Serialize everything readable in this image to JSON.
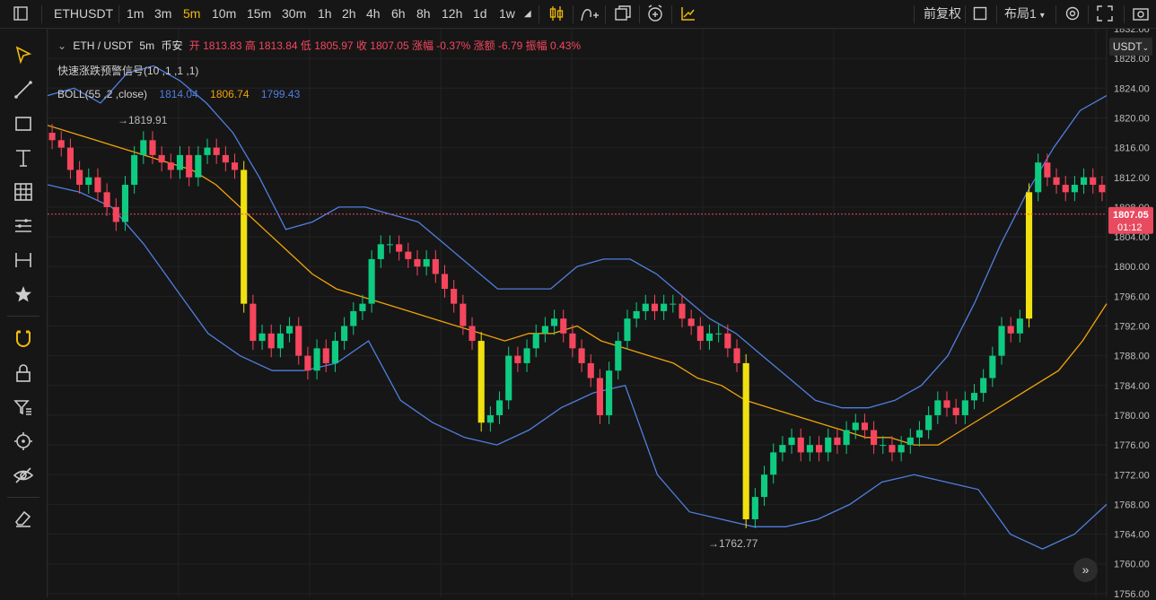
{
  "toolbar": {
    "menu_icon": "hamburger-icon",
    "symbol": "ETHUSDT",
    "intervals": [
      "1m",
      "3m",
      "5m",
      "10m",
      "15m",
      "30m",
      "1h",
      "2h",
      "4h",
      "6h",
      "8h",
      "12h",
      "1d",
      "1w"
    ],
    "active_interval": "5m",
    "right_buttons": {
      "adjust": "前复权",
      "layout": "布局1"
    }
  },
  "sidebar": {
    "tools": [
      "cursor-icon",
      "trendline-icon",
      "rectangle-icon",
      "text-icon",
      "grid-icon",
      "fib-icon",
      "measure-icon",
      "star-icon",
      "magnet-icon",
      "lock-icon",
      "filter-icon",
      "target-icon",
      "eye-icon",
      "eraser-icon"
    ]
  },
  "legend": {
    "symbol_line": "ETH / USDT",
    "interval": "5m",
    "exchange": "币安",
    "ohlc": "开 1813.83 高 1813.84 低 1805.97 收 1807.05 涨幅 -0.37% 涨额 -6.79 振幅 0.43%",
    "indicator1": "快速涨跌预警信号(10 ,1 ,1 ,1)",
    "boll_label": "BOLL(55 ,2 ,close)",
    "boll_upper": "1814.04",
    "boll_mid": "1806.74",
    "boll_lower": "1799.43"
  },
  "price_axis": {
    "currency": "USDT",
    "current_price": "1807.05",
    "countdown": "01:12"
  },
  "annotations": {
    "high_mark": "→1819.91",
    "low_mark": "→1762.77"
  },
  "colors": {
    "up": "#0ecb81",
    "down": "#f6465d",
    "spike": "#f0e010",
    "boll_mid": "#f0a30a",
    "boll_band": "#4f7fe0",
    "price_tag": "#e84a5f"
  },
  "chart_data": {
    "type": "candlestick",
    "ylim": [
      1755.5,
      1832
    ],
    "yticks": [
      1756,
      1760,
      1764,
      1768,
      1772,
      1776,
      1780,
      1784,
      1788,
      1792,
      1796,
      1800,
      1804,
      1808,
      1812,
      1816,
      1820,
      1824,
      1828,
      1832
    ],
    "candles_close_path": [
      1817,
      1816,
      1813,
      1811,
      1812,
      1810,
      1808,
      1806,
      1811,
      1815,
      1817,
      1815,
      1814,
      1813,
      1815,
      1812,
      1815,
      1816,
      1815,
      1814,
      1813,
      1795,
      1790,
      1791,
      1789,
      1791,
      1792,
      1788,
      1786,
      1789,
      1787,
      1790,
      1792,
      1794,
      1795,
      1801,
      1803,
      1803,
      1802,
      1801,
      1800,
      1801,
      1799,
      1797,
      1795,
      1792,
      1790,
      1779,
      1780,
      1782,
      1788,
      1787,
      1789,
      1791,
      1792,
      1793,
      1791,
      1789,
      1787,
      1785,
      1780,
      1786,
      1790,
      1793,
      1794,
      1795,
      1794,
      1795,
      1795,
      1793,
      1792,
      1790,
      1791,
      1791,
      1789,
      1787,
      1766,
      1769,
      1772,
      1775,
      1776,
      1777,
      1775,
      1776,
      1775,
      1777,
      1776,
      1778,
      1779,
      1778,
      1776,
      1776,
      1775,
      1776,
      1777,
      1778,
      1780,
      1782,
      1781,
      1780,
      1782,
      1783,
      1785,
      1788,
      1792,
      1791,
      1793,
      1810,
      1814,
      1812,
      1811,
      1810,
      1811,
      1812,
      1811,
      1810
    ],
    "boll_mid_path": [
      1819,
      1818,
      1817,
      1816,
      1815,
      1814,
      1813,
      1811,
      1808,
      1805,
      1802,
      1799,
      1797,
      1796,
      1795,
      1794,
      1793,
      1792,
      1791,
      1790,
      1791,
      1791,
      1792,
      1790,
      1789,
      1788,
      1787,
      1785,
      1784,
      1782,
      1781,
      1780,
      1779,
      1778,
      1777,
      1777,
      1776,
      1776,
      1778,
      1780,
      1782,
      1784,
      1786,
      1790,
      1795
    ],
    "boll_upper_path": [
      1823,
      1824,
      1822,
      1826,
      1827,
      1825,
      1822,
      1818,
      1812,
      1805,
      1806,
      1808,
      1808,
      1807,
      1806,
      1803,
      1800,
      1797,
      1797,
      1797,
      1800,
      1801,
      1801,
      1799,
      1796,
      1793,
      1791,
      1788,
      1785,
      1782,
      1781,
      1781,
      1782,
      1784,
      1788,
      1795,
      1803,
      1810,
      1816,
      1821,
      1823
    ],
    "boll_lower_path": [
      1811,
      1810,
      1808,
      1803,
      1797,
      1791,
      1788,
      1786,
      1786,
      1787,
      1790,
      1782,
      1779,
      1777,
      1776,
      1778,
      1781,
      1783,
      1784,
      1772,
      1767,
      1766,
      1765,
      1765,
      1766,
      1768,
      1771,
      1772,
      1771,
      1770,
      1764,
      1762,
      1764,
      1768
    ]
  }
}
